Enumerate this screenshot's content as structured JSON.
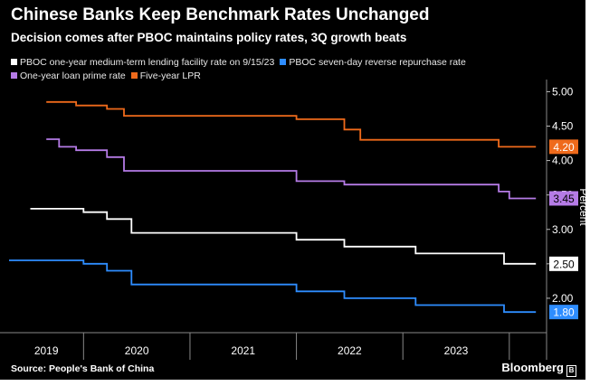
{
  "title": "Chinese Banks Keep Benchmark Rates Unchanged",
  "subtitle": "Decision comes after PBOC maintains policy rates, 3Q growth beats",
  "source": "Source: People's Bank of China",
  "brand": "Bloomberg",
  "chart_data": {
    "type": "line",
    "xlabel": "",
    "ylabel": "Percent",
    "x_range": [
      2018.8,
      2023.85
    ],
    "ylim": [
      1.5,
      5.15
    ],
    "y_ticks": [
      2.0,
      2.5,
      3.0,
      3.5,
      4.0,
      4.5,
      5.0
    ],
    "y_tick_labels": [
      "2.00",
      "2.50",
      "3.00",
      "3.50",
      "4.00",
      "4.50",
      "5.00"
    ],
    "year_labels": [
      "2019",
      "2020",
      "2021",
      "2022",
      "2023"
    ],
    "year_dividers": [
      2019.5,
      2020.5,
      2021.5,
      2022.5,
      2023.5
    ],
    "grid": false,
    "legend": "top",
    "series": [
      {
        "name": "PBOC one-year medium-term lending facility rate on 9/15/23",
        "color": "#ffffff",
        "end_label": "2.50",
        "end_label_bg": "#ffffff",
        "end_label_fg": "#000000",
        "points": [
          [
            2019.0,
            3.3
          ],
          [
            2019.5,
            3.3
          ],
          [
            2019.5,
            3.25
          ],
          [
            2019.72,
            3.25
          ],
          [
            2019.72,
            3.15
          ],
          [
            2019.95,
            3.15
          ],
          [
            2019.95,
            2.95
          ],
          [
            2021.5,
            2.95
          ],
          [
            2021.5,
            2.85
          ],
          [
            2021.95,
            2.85
          ],
          [
            2021.95,
            2.75
          ],
          [
            2022.62,
            2.75
          ],
          [
            2022.62,
            2.65
          ],
          [
            2023.45,
            2.65
          ],
          [
            2023.45,
            2.5
          ],
          [
            2023.75,
            2.5
          ]
        ]
      },
      {
        "name": "PBOC seven-day reverse repurchase rate",
        "color": "#2e8dff",
        "end_label": "1.80",
        "end_label_bg": "#2e8dff",
        "end_label_fg": "#ffffff",
        "points": [
          [
            2018.8,
            2.55
          ],
          [
            2019.5,
            2.55
          ],
          [
            2019.5,
            2.5
          ],
          [
            2019.72,
            2.5
          ],
          [
            2019.72,
            2.4
          ],
          [
            2019.95,
            2.4
          ],
          [
            2019.95,
            2.2
          ],
          [
            2021.5,
            2.2
          ],
          [
            2021.5,
            2.1
          ],
          [
            2021.95,
            2.1
          ],
          [
            2021.95,
            2.0
          ],
          [
            2022.62,
            2.0
          ],
          [
            2022.62,
            1.9
          ],
          [
            2023.45,
            1.9
          ],
          [
            2023.45,
            1.8
          ],
          [
            2023.75,
            1.8
          ]
        ]
      },
      {
        "name": "One-year loan prime rate",
        "color": "#b57be6",
        "end_label": "3.45",
        "end_label_bg": "#b57be6",
        "end_label_fg": "#000000",
        "points": [
          [
            2019.15,
            4.31
          ],
          [
            2019.27,
            4.31
          ],
          [
            2019.27,
            4.2
          ],
          [
            2019.43,
            4.2
          ],
          [
            2019.43,
            4.15
          ],
          [
            2019.72,
            4.15
          ],
          [
            2019.72,
            4.05
          ],
          [
            2019.88,
            4.05
          ],
          [
            2019.88,
            3.85
          ],
          [
            2021.5,
            3.85
          ],
          [
            2021.5,
            3.7
          ],
          [
            2021.95,
            3.7
          ],
          [
            2021.95,
            3.65
          ],
          [
            2022.62,
            3.65
          ],
          [
            2022.62,
            3.65
          ],
          [
            2023.4,
            3.65
          ],
          [
            2023.4,
            3.55
          ],
          [
            2023.5,
            3.55
          ],
          [
            2023.5,
            3.45
          ],
          [
            2023.75,
            3.45
          ]
        ]
      },
      {
        "name": "Five-year LPR",
        "color": "#ef6a1b",
        "end_label": "4.20",
        "end_label_bg": "#ef6a1b",
        "end_label_fg": "#ffffff",
        "points": [
          [
            2019.15,
            4.85
          ],
          [
            2019.43,
            4.85
          ],
          [
            2019.43,
            4.8
          ],
          [
            2019.72,
            4.8
          ],
          [
            2019.72,
            4.75
          ],
          [
            2019.88,
            4.75
          ],
          [
            2019.88,
            4.65
          ],
          [
            2021.5,
            4.65
          ],
          [
            2021.5,
            4.6
          ],
          [
            2021.95,
            4.6
          ],
          [
            2021.95,
            4.45
          ],
          [
            2022.1,
            4.45
          ],
          [
            2022.1,
            4.3
          ],
          [
            2023.4,
            4.3
          ],
          [
            2023.4,
            4.2
          ],
          [
            2023.75,
            4.2
          ]
        ]
      }
    ]
  }
}
